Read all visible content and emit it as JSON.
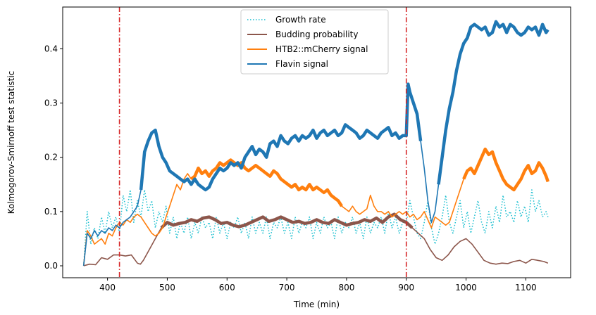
{
  "chart_data": {
    "type": "line",
    "title": "",
    "xlabel": "Time (min)",
    "ylabel": "Kolmogorov-Smirnoff test statistic",
    "xlim": [
      325,
      1175
    ],
    "ylim": [
      -0.022,
      0.477
    ],
    "xticks": [
      400,
      500,
      600,
      700,
      800,
      900,
      1000,
      1100
    ],
    "yticks": [
      0.0,
      0.1,
      0.2,
      0.3,
      0.4
    ],
    "grid": false,
    "legend_position": "upper-center",
    "vlines": [
      {
        "x": 420,
        "color": "#d62728"
      },
      {
        "x": 900,
        "color": "#d62728"
      }
    ],
    "series": [
      {
        "name": "Growth rate",
        "color": "#17becf",
        "style": "dotted",
        "x": [
          360,
          366,
          372,
          378,
          384,
          390,
          396,
          402,
          408,
          414,
          420,
          426,
          432,
          438,
          444,
          450,
          456,
          462,
          468,
          474,
          480,
          486,
          492,
          498,
          504,
          510,
          516,
          522,
          528,
          534,
          540,
          546,
          552,
          558,
          564,
          570,
          576,
          582,
          588,
          594,
          600,
          606,
          612,
          618,
          624,
          630,
          636,
          642,
          648,
          654,
          660,
          666,
          672,
          678,
          684,
          690,
          696,
          702,
          708,
          714,
          720,
          726,
          732,
          738,
          744,
          750,
          756,
          762,
          768,
          774,
          780,
          786,
          792,
          798,
          804,
          810,
          816,
          822,
          828,
          834,
          840,
          846,
          852,
          858,
          864,
          870,
          876,
          882,
          888,
          894,
          900,
          906,
          912,
          918,
          924,
          930,
          936,
          942,
          948,
          954,
          960,
          966,
          972,
          978,
          984,
          990,
          996,
          1002,
          1008,
          1014,
          1020,
          1026,
          1032,
          1038,
          1044,
          1050,
          1056,
          1062,
          1068,
          1074,
          1080,
          1086,
          1092,
          1098,
          1104,
          1110,
          1116,
          1122,
          1128,
          1134,
          1137
        ],
        "y": [
          0.0,
          0.1,
          0.04,
          0.07,
          0.05,
          0.09,
          0.06,
          0.1,
          0.07,
          0.09,
          0.06,
          0.13,
          0.1,
          0.14,
          0.08,
          0.12,
          0.09,
          0.14,
          0.1,
          0.12,
          0.07,
          0.1,
          0.08,
          0.11,
          0.06,
          0.09,
          0.05,
          0.08,
          0.06,
          0.09,
          0.05,
          0.08,
          0.06,
          0.09,
          0.07,
          0.08,
          0.05,
          0.09,
          0.06,
          0.08,
          0.05,
          0.08,
          0.07,
          0.09,
          0.06,
          0.08,
          0.05,
          0.09,
          0.06,
          0.08,
          0.06,
          0.09,
          0.05,
          0.08,
          0.07,
          0.09,
          0.06,
          0.08,
          0.05,
          0.09,
          0.06,
          0.08,
          0.07,
          0.09,
          0.05,
          0.08,
          0.06,
          0.09,
          0.07,
          0.08,
          0.05,
          0.09,
          0.06,
          0.08,
          0.07,
          0.09,
          0.06,
          0.08,
          0.05,
          0.09,
          0.06,
          0.08,
          0.07,
          0.09,
          0.06,
          0.1,
          0.07,
          0.09,
          0.06,
          0.08,
          0.08,
          0.12,
          0.09,
          0.06,
          0.05,
          0.08,
          0.12,
          0.07,
          0.04,
          0.06,
          0.09,
          0.13,
          0.08,
          0.06,
          0.09,
          0.12,
          0.07,
          0.1,
          0.06,
          0.09,
          0.12,
          0.08,
          0.06,
          0.1,
          0.07,
          0.11,
          0.08,
          0.13,
          0.09,
          0.1,
          0.08,
          0.12,
          0.09,
          0.11,
          0.08,
          0.14,
          0.1,
          0.12,
          0.09,
          0.1,
          0.09
        ]
      },
      {
        "name": "Budding probability",
        "color": "#8c564b",
        "style": "solid",
        "x": [
          360,
          370,
          380,
          390,
          400,
          410,
          420,
          430,
          440,
          450,
          455,
          460,
          470,
          480,
          490,
          500,
          510,
          520,
          530,
          540,
          550,
          560,
          570,
          580,
          590,
          600,
          610,
          620,
          630,
          640,
          650,
          660,
          670,
          680,
          690,
          700,
          710,
          720,
          730,
          740,
          750,
          760,
          770,
          780,
          790,
          800,
          810,
          820,
          830,
          840,
          850,
          860,
          870,
          880,
          890,
          900,
          910,
          920,
          930,
          940,
          950,
          960,
          970,
          980,
          990,
          1000,
          1010,
          1020,
          1030,
          1040,
          1050,
          1060,
          1070,
          1080,
          1090,
          1100,
          1110,
          1120,
          1130,
          1137
        ],
        "y": [
          0.0,
          0.003,
          0.002,
          0.015,
          0.012,
          0.02,
          0.02,
          0.018,
          0.02,
          0.005,
          0.003,
          0.01,
          0.03,
          0.05,
          0.07,
          0.08,
          0.075,
          0.078,
          0.08,
          0.085,
          0.082,
          0.088,
          0.09,
          0.085,
          0.078,
          0.08,
          0.075,
          0.072,
          0.075,
          0.08,
          0.085,
          0.09,
          0.082,
          0.085,
          0.09,
          0.085,
          0.08,
          0.082,
          0.078,
          0.08,
          0.085,
          0.08,
          0.078,
          0.085,
          0.08,
          0.075,
          0.078,
          0.08,
          0.085,
          0.082,
          0.088,
          0.08,
          0.09,
          0.095,
          0.085,
          0.08,
          0.07,
          0.06,
          0.05,
          0.03,
          0.015,
          0.01,
          0.02,
          0.035,
          0.045,
          0.05,
          0.04,
          0.025,
          0.01,
          0.005,
          0.003,
          0.005,
          0.004,
          0.008,
          0.01,
          0.005,
          0.012,
          0.01,
          0.008,
          0.005
        ],
        "thick_ranges": [
          [
            490,
            915
          ]
        ]
      },
      {
        "name": "HTB2::mCherry signal",
        "color": "#ff7f0e",
        "style": "solid",
        "x": [
          360,
          366,
          372,
          378,
          384,
          390,
          396,
          402,
          408,
          414,
          420,
          426,
          432,
          438,
          444,
          450,
          456,
          462,
          468,
          474,
          480,
          486,
          492,
          498,
          504,
          510,
          516,
          522,
          528,
          534,
          540,
          546,
          552,
          558,
          564,
          570,
          576,
          582,
          588,
          594,
          600,
          606,
          612,
          618,
          624,
          630,
          636,
          642,
          648,
          654,
          660,
          666,
          672,
          678,
          684,
          690,
          696,
          702,
          708,
          714,
          720,
          726,
          732,
          738,
          744,
          750,
          756,
          762,
          768,
          774,
          780,
          786,
          792,
          798,
          804,
          810,
          816,
          822,
          828,
          834,
          840,
          846,
          852,
          858,
          864,
          870,
          876,
          882,
          888,
          894,
          900,
          906,
          912,
          918,
          924,
          930,
          936,
          942,
          948,
          954,
          960,
          966,
          972,
          978,
          984,
          990,
          996,
          1002,
          1008,
          1014,
          1020,
          1026,
          1032,
          1038,
          1044,
          1050,
          1056,
          1062,
          1068,
          1074,
          1080,
          1086,
          1092,
          1098,
          1104,
          1110,
          1116,
          1122,
          1128,
          1134,
          1137
        ],
        "y": [
          0.0,
          0.065,
          0.055,
          0.04,
          0.045,
          0.05,
          0.04,
          0.06,
          0.055,
          0.07,
          0.08,
          0.075,
          0.085,
          0.08,
          0.09,
          0.095,
          0.09,
          0.08,
          0.07,
          0.06,
          0.055,
          0.06,
          0.07,
          0.09,
          0.11,
          0.13,
          0.15,
          0.14,
          0.16,
          0.17,
          0.16,
          0.165,
          0.18,
          0.17,
          0.175,
          0.165,
          0.175,
          0.18,
          0.19,
          0.185,
          0.19,
          0.195,
          0.19,
          0.185,
          0.19,
          0.18,
          0.175,
          0.18,
          0.185,
          0.18,
          0.175,
          0.17,
          0.165,
          0.175,
          0.17,
          0.16,
          0.155,
          0.15,
          0.145,
          0.15,
          0.14,
          0.145,
          0.14,
          0.15,
          0.14,
          0.145,
          0.14,
          0.135,
          0.14,
          0.13,
          0.125,
          0.12,
          0.11,
          0.105,
          0.1,
          0.11,
          0.1,
          0.095,
          0.1,
          0.105,
          0.13,
          0.11,
          0.1,
          0.1,
          0.095,
          0.1,
          0.09,
          0.095,
          0.1,
          0.095,
          0.1,
          0.09,
          0.095,
          0.085,
          0.09,
          0.1,
          0.085,
          0.07,
          0.09,
          0.085,
          0.08,
          0.075,
          0.08,
          0.1,
          0.12,
          0.14,
          0.16,
          0.175,
          0.18,
          0.17,
          0.185,
          0.2,
          0.215,
          0.205,
          0.21,
          0.19,
          0.175,
          0.16,
          0.15,
          0.145,
          0.14,
          0.15,
          0.16,
          0.175,
          0.185,
          0.17,
          0.175,
          0.19,
          0.18,
          0.165,
          0.155
        ],
        "thick_ranges": [
          [
            540,
            795
          ],
          [
            995,
            1137
          ]
        ]
      },
      {
        "name": "Flavin signal",
        "color": "#1f77b4",
        "style": "solid",
        "x": [
          360,
          366,
          372,
          378,
          384,
          390,
          396,
          402,
          408,
          414,
          420,
          426,
          432,
          438,
          444,
          450,
          456,
          462,
          468,
          474,
          480,
          486,
          492,
          498,
          504,
          510,
          516,
          522,
          528,
          534,
          540,
          546,
          552,
          558,
          564,
          570,
          576,
          582,
          588,
          594,
          600,
          606,
          612,
          618,
          624,
          630,
          636,
          642,
          648,
          654,
          660,
          666,
          672,
          678,
          684,
          690,
          696,
          702,
          708,
          714,
          720,
          726,
          732,
          738,
          744,
          750,
          756,
          762,
          768,
          774,
          780,
          786,
          792,
          798,
          804,
          810,
          816,
          822,
          828,
          834,
          840,
          846,
          852,
          858,
          864,
          870,
          876,
          882,
          888,
          894,
          900,
          903,
          906,
          912,
          918,
          924,
          930,
          936,
          942,
          948,
          954,
          960,
          966,
          972,
          978,
          984,
          990,
          996,
          1002,
          1008,
          1014,
          1020,
          1026,
          1032,
          1038,
          1044,
          1050,
          1056,
          1062,
          1068,
          1074,
          1080,
          1086,
          1092,
          1098,
          1104,
          1110,
          1116,
          1122,
          1128,
          1134,
          1137
        ],
        "y": [
          0.0,
          0.06,
          0.05,
          0.065,
          0.055,
          0.065,
          0.06,
          0.07,
          0.065,
          0.075,
          0.07,
          0.08,
          0.085,
          0.09,
          0.1,
          0.11,
          0.14,
          0.21,
          0.23,
          0.245,
          0.25,
          0.22,
          0.2,
          0.19,
          0.175,
          0.17,
          0.165,
          0.16,
          0.155,
          0.16,
          0.15,
          0.16,
          0.15,
          0.145,
          0.14,
          0.145,
          0.16,
          0.17,
          0.18,
          0.175,
          0.18,
          0.19,
          0.185,
          0.19,
          0.18,
          0.2,
          0.21,
          0.22,
          0.205,
          0.215,
          0.21,
          0.2,
          0.225,
          0.23,
          0.22,
          0.24,
          0.23,
          0.225,
          0.235,
          0.24,
          0.23,
          0.24,
          0.235,
          0.24,
          0.25,
          0.235,
          0.245,
          0.25,
          0.24,
          0.245,
          0.25,
          0.24,
          0.245,
          0.26,
          0.255,
          0.25,
          0.245,
          0.235,
          0.24,
          0.25,
          0.245,
          0.24,
          0.235,
          0.245,
          0.25,
          0.255,
          0.24,
          0.245,
          0.235,
          0.24,
          0.24,
          0.335,
          0.32,
          0.3,
          0.28,
          0.23,
          0.18,
          0.12,
          0.08,
          0.1,
          0.15,
          0.2,
          0.25,
          0.29,
          0.32,
          0.36,
          0.39,
          0.41,
          0.42,
          0.44,
          0.445,
          0.44,
          0.435,
          0.44,
          0.425,
          0.43,
          0.45,
          0.44,
          0.445,
          0.43,
          0.445,
          0.44,
          0.43,
          0.425,
          0.43,
          0.44,
          0.435,
          0.44,
          0.425,
          0.445,
          0.43,
          0.435
        ],
        "thick_ranges": [
          [
            454,
            924
          ],
          [
            950,
            1137
          ]
        ]
      }
    ]
  }
}
